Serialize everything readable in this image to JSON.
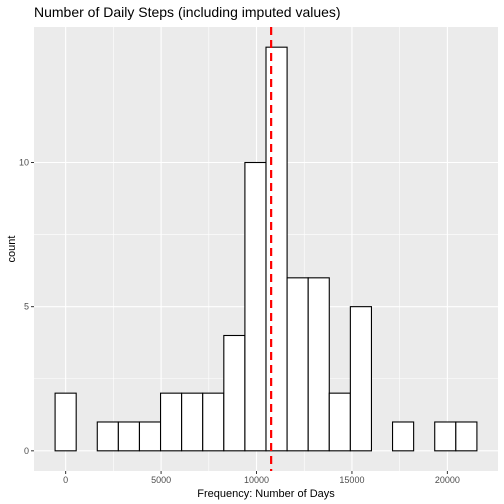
{
  "chart_data": {
    "type": "bar",
    "title": "Number of Daily Steps (including imputed values)",
    "xlabel": "Frequency: Number of Days",
    "ylabel": "count",
    "bin_width": 1105,
    "bins": [
      {
        "x_start": -553,
        "x_end": 552,
        "count": 2
      },
      {
        "x_start": 552,
        "x_end": 1657,
        "count": 0
      },
      {
        "x_start": 1657,
        "x_end": 2762,
        "count": 1
      },
      {
        "x_start": 2762,
        "x_end": 3867,
        "count": 1
      },
      {
        "x_start": 3867,
        "x_end": 4972,
        "count": 1
      },
      {
        "x_start": 4972,
        "x_end": 6077,
        "count": 2
      },
      {
        "x_start": 6077,
        "x_end": 7182,
        "count": 2
      },
      {
        "x_start": 7182,
        "x_end": 8287,
        "count": 2
      },
      {
        "x_start": 8287,
        "x_end": 9392,
        "count": 4
      },
      {
        "x_start": 9392,
        "x_end": 10497,
        "count": 10
      },
      {
        "x_start": 10497,
        "x_end": 11602,
        "count": 14
      },
      {
        "x_start": 11602,
        "x_end": 12707,
        "count": 6
      },
      {
        "x_start": 12707,
        "x_end": 13812,
        "count": 6
      },
      {
        "x_start": 13812,
        "x_end": 14917,
        "count": 2
      },
      {
        "x_start": 14917,
        "x_end": 16022,
        "count": 5
      },
      {
        "x_start": 16022,
        "x_end": 17127,
        "count": 0
      },
      {
        "x_start": 17127,
        "x_end": 18232,
        "count": 1
      },
      {
        "x_start": 18232,
        "x_end": 19337,
        "count": 0
      },
      {
        "x_start": 19337,
        "x_end": 20442,
        "count": 1
      },
      {
        "x_start": 20442,
        "x_end": 21547,
        "count": 1
      }
    ],
    "mean_line": {
      "x": 10766,
      "color": "#ff0000",
      "style": "dashed"
    },
    "x_ticks": [
      {
        "value": 0,
        "label": "0"
      },
      {
        "value": 5000,
        "label": "5000"
      },
      {
        "value": 10000,
        "label": "10000"
      },
      {
        "value": 15000,
        "label": "15000"
      },
      {
        "value": 20000,
        "label": "20000"
      }
    ],
    "y_ticks": [
      {
        "value": 0,
        "label": "0"
      },
      {
        "value": 5,
        "label": "5"
      },
      {
        "value": 10,
        "label": "10"
      }
    ],
    "xlim": [
      -1658,
      22652
    ],
    "ylim": [
      -0.7,
      14.7
    ],
    "grid": true,
    "colors": {
      "panel_background": "#ebebeb",
      "grid_major": "#ffffff",
      "bar_fill": "#ffffff",
      "bar_outline": "#000000",
      "mean_line": "#ff0000"
    }
  }
}
